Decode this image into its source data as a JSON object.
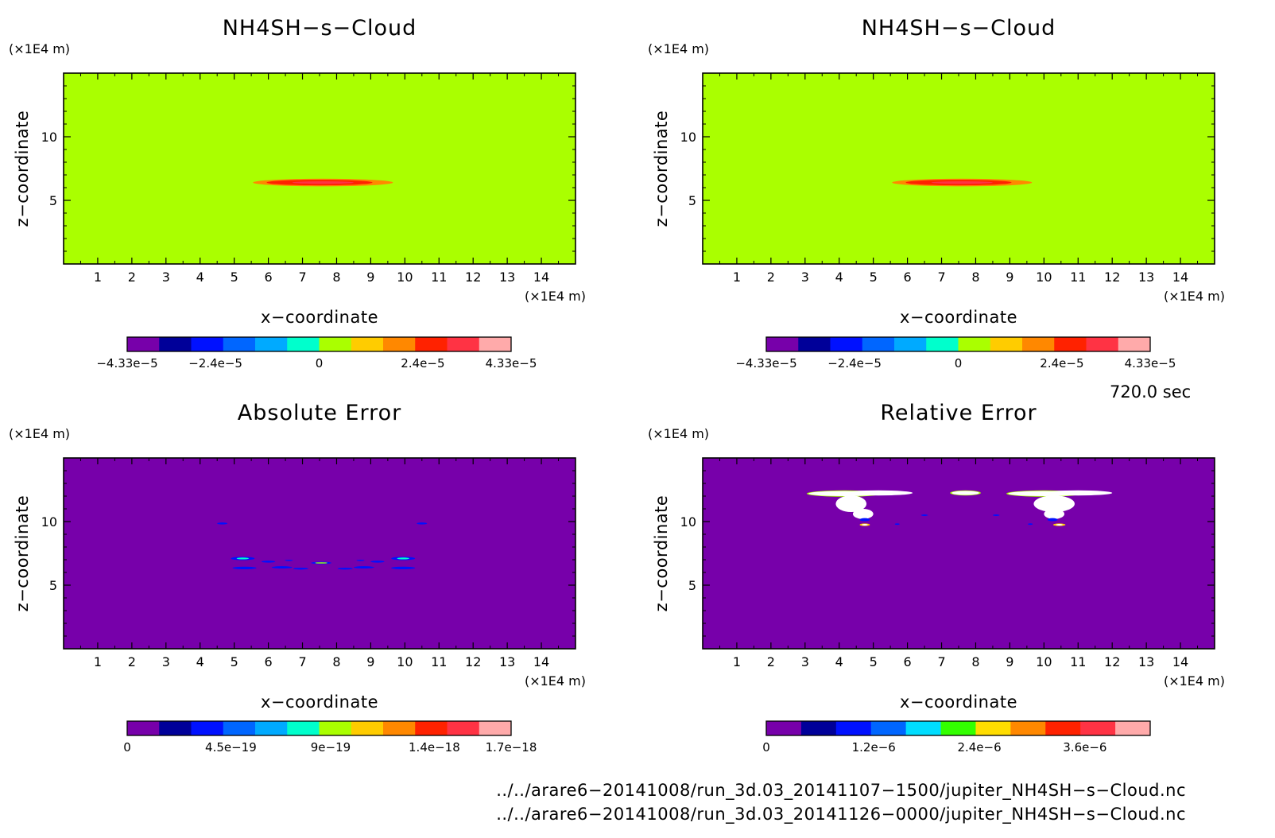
{
  "chart_data": [
    {
      "type": "heatmap",
      "title": "NH4SH−s−Cloud",
      "xlabel": "x−coordinate",
      "ylabel": "z−coordinate",
      "x_unit": "(×1E4 m)",
      "y_unit": "(×1E4 m)",
      "xlim": [
        0,
        15
      ],
      "ylim": [
        0,
        15
      ],
      "x_ticks": [
        "1",
        "2",
        "3",
        "4",
        "5",
        "6",
        "7",
        "8",
        "9",
        "10",
        "11",
        "12",
        "13",
        "14"
      ],
      "y_ticks": [
        "5",
        "10"
      ],
      "background": "#aaff00",
      "features": [
        {
          "shape": "ellipse",
          "cx": 7.6,
          "cz": 6.4,
          "rx": 2.05,
          "rz": 0.3,
          "fill": "#ff8800"
        },
        {
          "shape": "ellipse",
          "cx": 7.5,
          "cz": 6.4,
          "rx": 1.55,
          "rz": 0.22,
          "fill": "#ff2200"
        },
        {
          "shape": "ellipse",
          "cx": 7.6,
          "cz": 6.4,
          "rx": 0.9,
          "rz": 0.1,
          "fill": "#ff3344"
        }
      ],
      "colorbar": {
        "colors": [
          "#7700aa",
          "#000099",
          "#0011ff",
          "#0066ff",
          "#00aaff",
          "#00ffcc",
          "#aaff00",
          "#ffcc00",
          "#ff8800",
          "#ff2200",
          "#ff3344",
          "#ffaaaa"
        ],
        "tick_labels": [
          "−4.33e−5",
          "−2.4e−5",
          "0",
          "2.4e−5",
          "4.33e−5"
        ],
        "tick_positions": [
          0,
          0.23,
          0.5,
          0.77,
          1
        ]
      }
    },
    {
      "type": "heatmap",
      "title": "NH4SH−s−Cloud",
      "xlabel": "x−coordinate",
      "ylabel": "z−coordinate",
      "x_unit": "(×1E4 m)",
      "y_unit": "(×1E4 m)",
      "xlim": [
        0,
        15
      ],
      "ylim": [
        0,
        15
      ],
      "x_ticks": [
        "1",
        "2",
        "3",
        "4",
        "5",
        "6",
        "7",
        "8",
        "9",
        "10",
        "11",
        "12",
        "13",
        "14"
      ],
      "y_ticks": [
        "5",
        "10"
      ],
      "background": "#aaff00",
      "features": [
        {
          "shape": "ellipse",
          "cx": 7.6,
          "cz": 6.4,
          "rx": 2.05,
          "rz": 0.3,
          "fill": "#ff8800"
        },
        {
          "shape": "ellipse",
          "cx": 7.5,
          "cz": 6.4,
          "rx": 1.55,
          "rz": 0.22,
          "fill": "#ff2200"
        },
        {
          "shape": "ellipse",
          "cx": 7.6,
          "cz": 6.4,
          "rx": 0.9,
          "rz": 0.1,
          "fill": "#ff3344"
        }
      ],
      "colorbar": {
        "colors": [
          "#7700aa",
          "#000099",
          "#0011ff",
          "#0066ff",
          "#00aaff",
          "#00ffcc",
          "#aaff00",
          "#ffcc00",
          "#ff8800",
          "#ff2200",
          "#ff3344",
          "#ffaaaa"
        ],
        "tick_labels": [
          "−4.33e−5",
          "−2.4e−5",
          "0",
          "2.4e−5",
          "4.33e−5"
        ],
        "tick_positions": [
          0,
          0.23,
          0.5,
          0.77,
          1
        ]
      }
    },
    {
      "type": "heatmap",
      "title": "Absolute Error",
      "xlabel": "x−coordinate",
      "ylabel": "z−coordinate",
      "x_unit": "(×1E4 m)",
      "y_unit": "(×1E4 m)",
      "xlim": [
        0,
        15
      ],
      "ylim": [
        0,
        15
      ],
      "x_ticks": [
        "1",
        "2",
        "3",
        "4",
        "5",
        "6",
        "7",
        "8",
        "9",
        "10",
        "11",
        "12",
        "13",
        "14"
      ],
      "y_ticks": [
        "5",
        "10"
      ],
      "background": "#7700aa",
      "features": [
        {
          "shape": "ellipse",
          "cx": 4.65,
          "cz": 9.85,
          "rx": 0.15,
          "rz": 0.08,
          "fill": "#0011ff"
        },
        {
          "shape": "ellipse",
          "cx": 10.5,
          "cz": 9.85,
          "rx": 0.15,
          "rz": 0.08,
          "fill": "#0011ff"
        },
        {
          "shape": "ellipse",
          "cx": 5.25,
          "cz": 7.1,
          "rx": 0.35,
          "rz": 0.13,
          "fill": "#0011ff"
        },
        {
          "shape": "ellipse",
          "cx": 5.25,
          "cz": 7.1,
          "rx": 0.18,
          "rz": 0.07,
          "fill": "#00ffcc"
        },
        {
          "shape": "ellipse",
          "cx": 9.95,
          "cz": 7.1,
          "rx": 0.35,
          "rz": 0.13,
          "fill": "#0011ff"
        },
        {
          "shape": "ellipse",
          "cx": 9.95,
          "cz": 7.1,
          "rx": 0.18,
          "rz": 0.07,
          "fill": "#00ffcc"
        },
        {
          "shape": "ellipse",
          "cx": 5.3,
          "cz": 6.35,
          "rx": 0.35,
          "rz": 0.1,
          "fill": "#0011ff"
        },
        {
          "shape": "ellipse",
          "cx": 9.95,
          "cz": 6.35,
          "rx": 0.35,
          "rz": 0.1,
          "fill": "#0011ff"
        },
        {
          "shape": "ellipse",
          "cx": 6.0,
          "cz": 6.85,
          "rx": 0.2,
          "rz": 0.08,
          "fill": "#0011ff"
        },
        {
          "shape": "ellipse",
          "cx": 9.2,
          "cz": 6.85,
          "rx": 0.2,
          "rz": 0.08,
          "fill": "#0011ff"
        },
        {
          "shape": "ellipse",
          "cx": 6.4,
          "cz": 6.4,
          "rx": 0.3,
          "rz": 0.09,
          "fill": "#0011ff"
        },
        {
          "shape": "ellipse",
          "cx": 8.8,
          "cz": 6.4,
          "rx": 0.3,
          "rz": 0.09,
          "fill": "#0011ff"
        },
        {
          "shape": "ellipse",
          "cx": 6.95,
          "cz": 6.3,
          "rx": 0.22,
          "rz": 0.07,
          "fill": "#0011ff"
        },
        {
          "shape": "ellipse",
          "cx": 8.25,
          "cz": 6.3,
          "rx": 0.22,
          "rz": 0.07,
          "fill": "#0011ff"
        },
        {
          "shape": "ellipse",
          "cx": 7.55,
          "cz": 6.75,
          "rx": 0.3,
          "rz": 0.09,
          "fill": "#0011ff"
        },
        {
          "shape": "ellipse",
          "cx": 7.55,
          "cz": 6.75,
          "rx": 0.18,
          "rz": 0.05,
          "fill": "#aaff00"
        },
        {
          "shape": "ellipse",
          "cx": 8.7,
          "cz": 6.95,
          "rx": 0.12,
          "rz": 0.05,
          "fill": "#0011ff"
        },
        {
          "shape": "ellipse",
          "cx": 6.6,
          "cz": 6.95,
          "rx": 0.12,
          "rz": 0.05,
          "fill": "#0011ff"
        }
      ],
      "colorbar": {
        "colors": [
          "#7700aa",
          "#000099",
          "#0011ff",
          "#0066ff",
          "#00aaff",
          "#00ffcc",
          "#aaff00",
          "#ffcc00",
          "#ff8800",
          "#ff2200",
          "#ff3344",
          "#ffaaaa"
        ],
        "tick_labels": [
          "0",
          "4.5e−19",
          "9e−19",
          "1.4e−18",
          "1.7e−18"
        ],
        "tick_positions": [
          0,
          0.27,
          0.53,
          0.8,
          1
        ]
      }
    },
    {
      "type": "heatmap",
      "title": "Relative Error",
      "xlabel": "x−coordinate",
      "ylabel": "z−coordinate",
      "x_unit": "(×1E4 m)",
      "y_unit": "(×1E4 m)",
      "xlim": [
        0,
        15
      ],
      "ylim": [
        0,
        15
      ],
      "x_ticks": [
        "1",
        "2",
        "3",
        "4",
        "5",
        "6",
        "7",
        "8",
        "9",
        "10",
        "11",
        "12",
        "13",
        "14"
      ],
      "y_ticks": [
        "5",
        "10"
      ],
      "background": "#7700aa",
      "features": [
        {
          "shape": "ellipse",
          "cx": 4.15,
          "cz": 12.2,
          "rx": 1.1,
          "rz": 0.25,
          "fill": "#aaff00"
        },
        {
          "shape": "ellipse",
          "cx": 4.15,
          "cz": 12.2,
          "rx": 1.05,
          "rz": 0.2,
          "fill": "#ffffff"
        },
        {
          "shape": "ellipse",
          "cx": 4.35,
          "cz": 11.4,
          "rx": 0.45,
          "rz": 0.65,
          "fill": "#ffffff"
        },
        {
          "shape": "ellipse",
          "cx": 4.7,
          "cz": 10.6,
          "rx": 0.3,
          "rz": 0.4,
          "fill": "#ffffff"
        },
        {
          "shape": "ellipse",
          "cx": 4.75,
          "cz": 10.15,
          "rx": 0.15,
          "rz": 0.12,
          "fill": "#0011ff"
        },
        {
          "shape": "ellipse",
          "cx": 4.75,
          "cz": 9.75,
          "rx": 0.15,
          "rz": 0.1,
          "fill": "#ffcc00"
        },
        {
          "shape": "ellipse",
          "cx": 4.75,
          "cz": 9.75,
          "rx": 0.09,
          "rz": 0.06,
          "fill": "#ffffff"
        },
        {
          "shape": "ellipse",
          "cx": 5.15,
          "cz": 12.25,
          "rx": 1.0,
          "rz": 0.2,
          "fill": "#ffffff"
        },
        {
          "shape": "ellipse",
          "cx": 7.7,
          "cz": 12.25,
          "rx": 0.45,
          "rz": 0.2,
          "fill": "#aaff00"
        },
        {
          "shape": "ellipse",
          "cx": 7.7,
          "cz": 12.25,
          "rx": 0.4,
          "rz": 0.16,
          "fill": "#ffffff"
        },
        {
          "shape": "ellipse",
          "cx": 10.0,
          "cz": 12.2,
          "rx": 1.1,
          "rz": 0.25,
          "fill": "#aaff00"
        },
        {
          "shape": "ellipse",
          "cx": 10.0,
          "cz": 12.2,
          "rx": 1.05,
          "rz": 0.2,
          "fill": "#ffffff"
        },
        {
          "shape": "ellipse",
          "cx": 11.0,
          "cz": 12.25,
          "rx": 1.0,
          "rz": 0.2,
          "fill": "#ffffff"
        },
        {
          "shape": "ellipse",
          "cx": 10.3,
          "cz": 11.4,
          "rx": 0.6,
          "rz": 0.65,
          "fill": "#ffffff"
        },
        {
          "shape": "ellipse",
          "cx": 10.3,
          "cz": 10.6,
          "rx": 0.3,
          "rz": 0.4,
          "fill": "#ffffff"
        },
        {
          "shape": "ellipse",
          "cx": 10.25,
          "cz": 10.15,
          "rx": 0.15,
          "rz": 0.12,
          "fill": "#0011ff"
        },
        {
          "shape": "ellipse",
          "cx": 10.45,
          "cz": 9.75,
          "rx": 0.18,
          "rz": 0.1,
          "fill": "#ffcc00"
        },
        {
          "shape": "ellipse",
          "cx": 10.45,
          "cz": 9.75,
          "rx": 0.1,
          "rz": 0.06,
          "fill": "#ffffff"
        },
        {
          "shape": "ellipse",
          "cx": 5.7,
          "cz": 9.8,
          "rx": 0.07,
          "rz": 0.06,
          "fill": "#0011ff"
        },
        {
          "shape": "ellipse",
          "cx": 6.5,
          "cz": 10.5,
          "rx": 0.1,
          "rz": 0.06,
          "fill": "#0011ff"
        },
        {
          "shape": "ellipse",
          "cx": 8.6,
          "cz": 10.5,
          "rx": 0.1,
          "rz": 0.06,
          "fill": "#0011ff"
        },
        {
          "shape": "ellipse",
          "cx": 9.6,
          "cz": 9.8,
          "rx": 0.07,
          "rz": 0.06,
          "fill": "#0011ff"
        }
      ],
      "colorbar": {
        "colors": [
          "#7700aa",
          "#000099",
          "#0011ff",
          "#0066ff",
          "#00ddff",
          "#33ff00",
          "#ffdd00",
          "#ff8800",
          "#ff2200",
          "#ff3344",
          "#ffaaaa"
        ],
        "tick_labels": [
          "0",
          "1.2e−6",
          "2.4e−6",
          "3.6e−6"
        ],
        "tick_positions": [
          0,
          0.28,
          0.555,
          0.83
        ]
      }
    }
  ],
  "time_label": "720.0 sec",
  "footer": {
    "file1": "../../arare6−20141008/run_3d.03_20141107−1500/jupiter_NH4SH−s−Cloud.nc",
    "file2": "../../arare6−20141008/run_3d.03_20141126−0000/jupiter_NH4SH−s−Cloud.nc"
  }
}
